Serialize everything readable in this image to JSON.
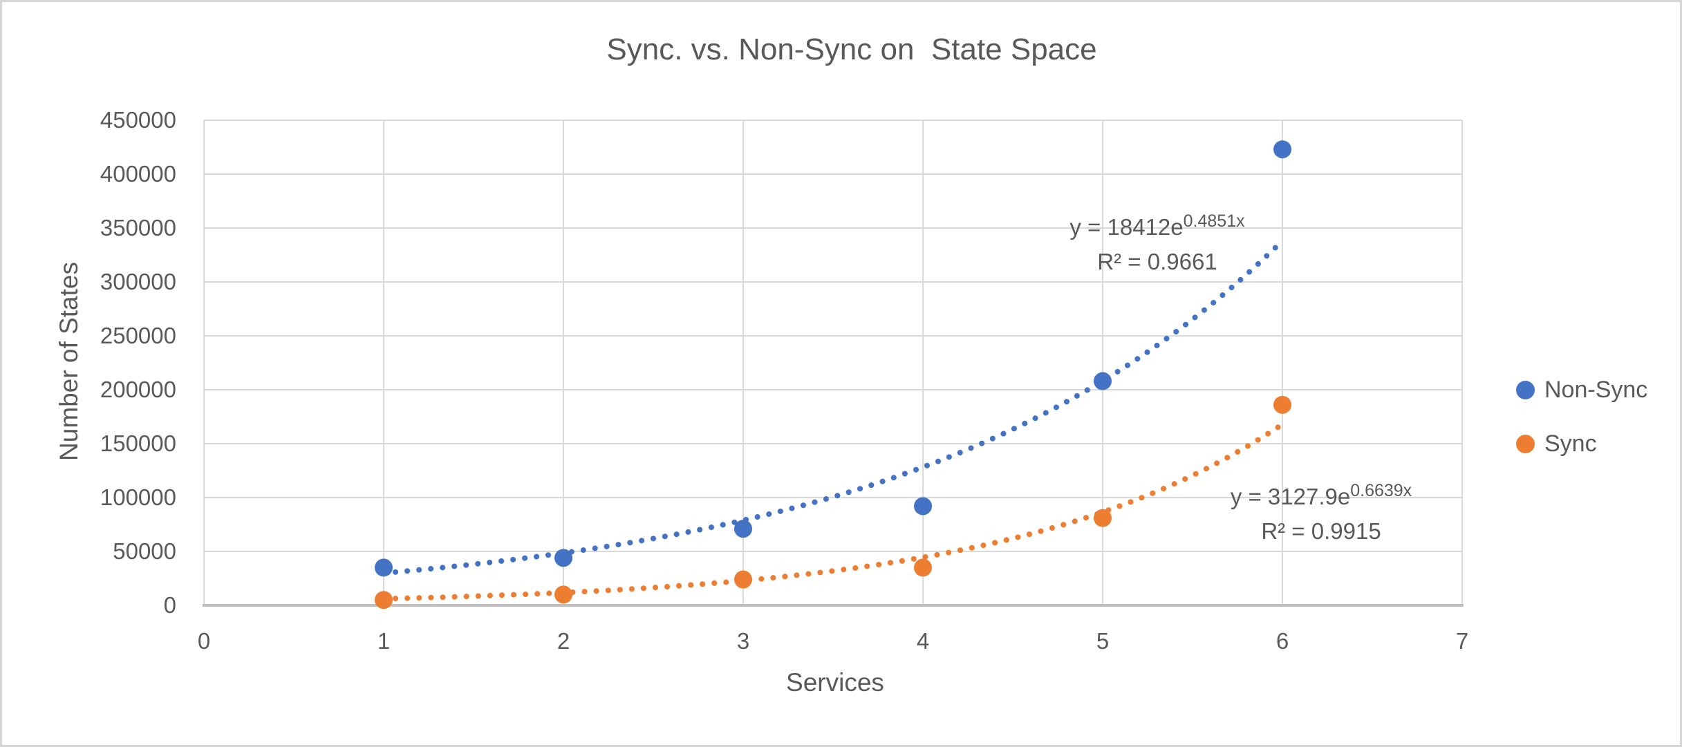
{
  "chart_data": {
    "type": "scatter",
    "title": "Sync. vs. Non-Sync on  State Space",
    "xlabel": "Services",
    "ylabel": "Number of States",
    "xlim": [
      0,
      7
    ],
    "ylim": [
      0,
      450000
    ],
    "x_ticks": [
      0,
      1,
      2,
      3,
      4,
      5,
      6,
      7
    ],
    "x_tick_labels": [
      "0",
      "1",
      "2",
      "3",
      "4",
      "5",
      "6",
      "7"
    ],
    "y_ticks": [
      0,
      50000,
      100000,
      150000,
      200000,
      250000,
      300000,
      350000,
      400000,
      450000
    ],
    "y_tick_labels": [
      "0",
      "50000",
      "100000",
      "150000",
      "200000",
      "250000",
      "300000",
      "350000",
      "400000",
      "450000"
    ],
    "grid": true,
    "legend_position": "right",
    "series": [
      {
        "name": "Non-Sync",
        "color": "#4472C4",
        "x": [
          1,
          2,
          3,
          4,
          5,
          6
        ],
        "y": [
          35000,
          44000,
          71000,
          92000,
          208000,
          423000
        ],
        "trendline": {
          "type": "exponential",
          "a": 18412,
          "b": 0.4851,
          "x_range": [
            1,
            6
          ],
          "equation_base": "y = 18412e",
          "equation_exponent": "0.4851x",
          "r2_label": "R² = 0.9661"
        }
      },
      {
        "name": "Sync",
        "color": "#ED7D31",
        "x": [
          1,
          2,
          3,
          4,
          5,
          6
        ],
        "y": [
          5000,
          10000,
          24000,
          35000,
          81000,
          186000
        ],
        "trendline": {
          "type": "exponential",
          "a": 3127.9,
          "b": 0.6639,
          "x_range": [
            1,
            6
          ],
          "equation_base": "y = 3127.9e",
          "equation_exponent": "0.6639x",
          "r2_label": "R² = 0.9915"
        }
      }
    ],
    "colors": {
      "grid": "#D9D9D9",
      "axis": "#BFBFBF",
      "text": "#595959",
      "frame_border": "#D5D5D5"
    }
  }
}
